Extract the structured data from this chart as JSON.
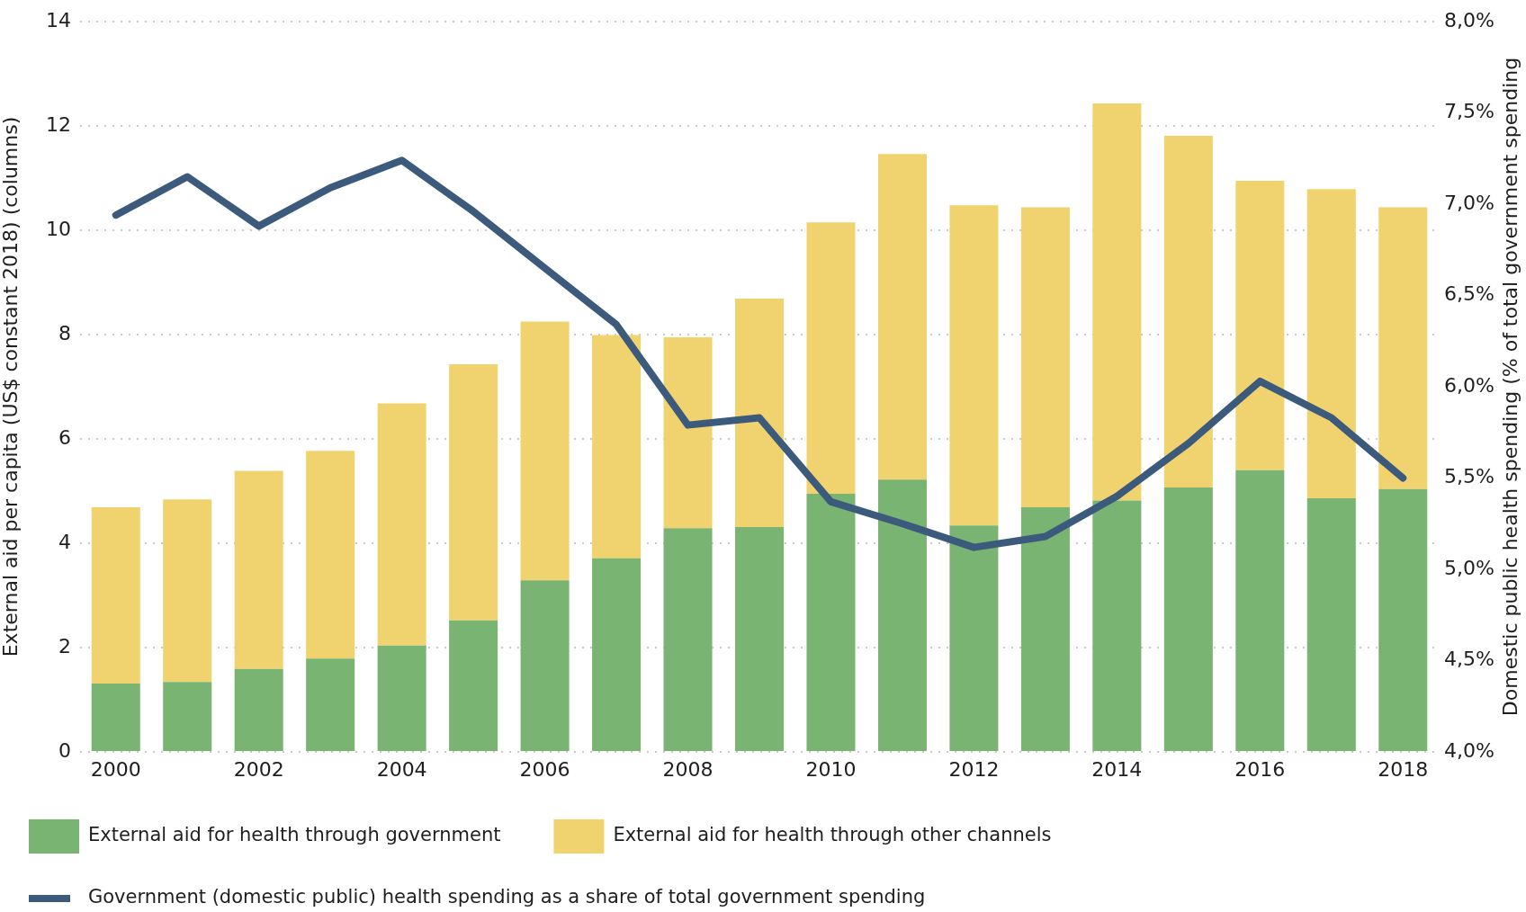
{
  "chart_data": {
    "type": "bar",
    "stacked": true,
    "categories": [
      "2000",
      null,
      "2002",
      null,
      "2004",
      null,
      "2006",
      null,
      "2008",
      null,
      "2010",
      null,
      "2012",
      null,
      "2014",
      null,
      "2016",
      null,
      "2018"
    ],
    "ylabel": "External aid per capita (US$ constant 2018) (columns)",
    "y2label": "Domestic public health spending (% of total government spending",
    "ylim": [
      0,
      14
    ],
    "yticks": [
      0,
      2,
      4,
      6,
      8,
      10,
      12,
      14
    ],
    "y2lim": [
      4,
      8
    ],
    "y2ticks": [
      {
        "value": 4,
        "label": "4,0%"
      },
      {
        "value": 4.5,
        "label": "4,5%"
      },
      {
        "value": 5,
        "label": "5,0%"
      },
      {
        "value": 5.5,
        "label": "5,5%"
      },
      {
        "value": 6,
        "label": "6,0%"
      },
      {
        "value": 6.5,
        "label": "6,5%"
      },
      {
        "value": 7,
        "label": "7,0%"
      },
      {
        "value": 7.5,
        "label": "7,5%"
      },
      {
        "value": 8,
        "label": "8,0%"
      }
    ],
    "grid": "y",
    "legend": "bottom",
    "series": [
      {
        "name": "External aid for health through government",
        "color": "#79b473",
        "values": [
          1.31,
          1.34,
          1.59,
          1.79,
          2.04,
          2.52,
          3.29,
          3.71,
          4.29,
          4.31,
          4.95,
          5.22,
          4.34,
          4.69,
          4.82,
          5.07,
          5.4,
          4.86,
          5.04
        ]
      },
      {
        "name": "External aid for health through other channels",
        "color": "#f0d36e",
        "values": [
          3.38,
          3.5,
          3.8,
          3.98,
          4.64,
          4.91,
          4.96,
          4.28,
          3.66,
          4.38,
          5.2,
          6.24,
          6.14,
          5.75,
          7.61,
          6.74,
          5.55,
          5.93,
          5.4
        ]
      },
      {
        "name": "Government (domestic public) health spending as a share of total government spending",
        "color": "#3c5a7c",
        "type": "line",
        "axis": "y2",
        "values": [
          6.94,
          7.15,
          6.88,
          7.09,
          7.24,
          6.96,
          6.65,
          6.34,
          5.79,
          5.83,
          5.37,
          5.25,
          5.12,
          5.18,
          5.4,
          5.69,
          6.03,
          5.83,
          5.5
        ]
      }
    ]
  }
}
